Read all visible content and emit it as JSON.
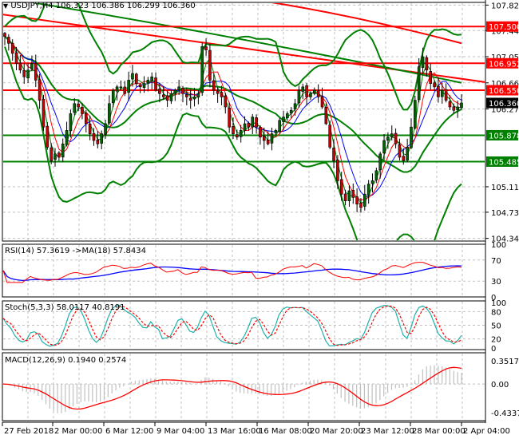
{
  "chart_data": [
    {
      "panel": "main",
      "type": "candlestick",
      "title": "USDJPY,H4",
      "symbol": "USDJPY",
      "timeframe": "H4",
      "ohlc_header": {
        "open": "106.323",
        "high": "106.386",
        "low": "106.299",
        "close": "106.360"
      },
      "y_ticks": [
        "107.820",
        "107.440",
        "107.050",
        "106.660",
        "106.270",
        "105.110",
        "104.730",
        "104.340"
      ],
      "ylim": [
        104.3,
        107.86
      ],
      "price_tags": [
        {
          "value": "107.500",
          "color": "#ff0000"
        },
        {
          "value": "106.952",
          "color": "#ff0000"
        },
        {
          "value": "106.550",
          "color": "#ff0000"
        },
        {
          "value": "106.360",
          "color": "#000000"
        },
        {
          "value": "105.878",
          "color": "#008000"
        },
        {
          "value": "105.485",
          "color": "#008000"
        }
      ],
      "horizontal_lines": [
        {
          "price": 107.5,
          "color": "#ff0000"
        },
        {
          "price": 106.952,
          "color": "#ff0000"
        },
        {
          "price": 106.55,
          "color": "#ff0000"
        },
        {
          "price": 105.878,
          "color": "#008000"
        },
        {
          "price": 105.485,
          "color": "#008000"
        }
      ],
      "x_labels": [
        "27 Feb 2018",
        "2 Mar 00:00",
        "6 Mar 12:00",
        "9 Mar 04:00",
        "13 Mar 16:00",
        "16 Mar 08:00",
        "20 Mar 20:00",
        "23 Mar 12:00",
        "28 Mar 00:00",
        "2 Apr 04:00"
      ],
      "series": [
        {
          "name": "Bollinger Bands",
          "color": "#008000"
        },
        {
          "name": "MA fast",
          "color": "#008000"
        },
        {
          "name": "MA medium",
          "color": "#ff0000"
        },
        {
          "name": "MA slow",
          "color": "#0000ff"
        },
        {
          "name": "Trendline / long MA",
          "color": "#ff0000"
        }
      ],
      "closes_approx": [
        107.35,
        107.25,
        107.1,
        106.95,
        106.85,
        106.75,
        106.85,
        106.95,
        106.7,
        106.4,
        106.0,
        105.7,
        105.5,
        105.6,
        105.55,
        105.75,
        105.95,
        106.2,
        106.35,
        106.3,
        106.2,
        106.05,
        105.9,
        105.8,
        105.75,
        105.9,
        106.05,
        106.35,
        106.55,
        106.6,
        106.6,
        106.5,
        106.7,
        106.8,
        106.65,
        106.6,
        106.65,
        106.7,
        106.75,
        106.55,
        106.5,
        106.45,
        106.4,
        106.5,
        106.55,
        106.6,
        106.5,
        106.45,
        106.4,
        106.45,
        106.5,
        107.2,
        107.15,
        106.7,
        106.55,
        106.5,
        106.45,
        106.3,
        106.0,
        105.9,
        105.85,
        105.95,
        106.05,
        106.0,
        106.15,
        106.0,
        105.85,
        105.8,
        105.75,
        105.9,
        105.95,
        106.1,
        106.15,
        106.2,
        106.25,
        106.35,
        106.55,
        106.6,
        106.45,
        106.5,
        106.55,
        106.45,
        106.3,
        106.05,
        105.7,
        105.5,
        105.2,
        105.0,
        104.9,
        105.05,
        104.95,
        104.85,
        104.8,
        105.0,
        105.15,
        105.2,
        105.35,
        105.6,
        105.8,
        105.85,
        105.9,
        105.75,
        105.55,
        105.5,
        105.7,
        106.0,
        106.4,
        106.9,
        107.05,
        106.85,
        106.65,
        106.6,
        106.45,
        106.55,
        106.4,
        106.3,
        106.25,
        106.3,
        106.36
      ]
    },
    {
      "panel": "rsi",
      "type": "line",
      "title": "RSI(14) 57.3619 ->MA(18) 57.8434",
      "rsi_value": "57.3619",
      "ma_value": "57.8434",
      "y_ticks": [
        "100",
        "70",
        "30",
        "0"
      ],
      "ylim": [
        0,
        100
      ],
      "series": [
        {
          "name": "RSI(14)",
          "color": "#ff0000"
        },
        {
          "name": "MA(18)",
          "color": "#0000ff"
        }
      ]
    },
    {
      "panel": "stoch",
      "type": "line",
      "title": "Stoch(5,3,3) 58.0117 40.8191",
      "main_value": "58.0117",
      "signal_value": "40.8191",
      "y_ticks": [
        "100",
        "80",
        "50",
        "20",
        "0"
      ],
      "ylim": [
        0,
        100
      ],
      "series": [
        {
          "name": "%K",
          "color": "#20b2aa"
        },
        {
          "name": "%D",
          "color": "#ff0000",
          "style": "dashed"
        }
      ]
    },
    {
      "panel": "macd",
      "type": "bar+line",
      "title": "MACD(12,26,9) 0.1940 0.2574",
      "macd_value": "0.1940",
      "signal_value": "0.2574",
      "y_ticks": [
        "0.3517",
        "0.00",
        "-0.4337"
      ],
      "ylim": [
        -0.4337,
        0.3517
      ],
      "series": [
        {
          "name": "MACD histogram",
          "color": "#c0c0c0"
        },
        {
          "name": "Signal",
          "color": "#ff0000"
        }
      ]
    }
  ],
  "ui": {
    "header": "USDJPY,H4  106.323 106.386 106.299 106.360",
    "rsi_label": "RSI(14) 57.3619  ->MA(18) 57.8434",
    "stoch_label": "Stoch(5,3,3) 58.0117 40.8191",
    "macd_label": "MACD(12,26,9) 0.1940 0.2574"
  }
}
